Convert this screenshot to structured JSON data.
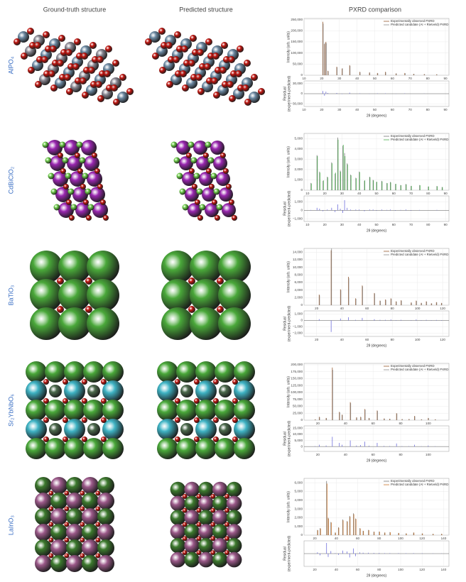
{
  "header": {
    "ground_truth": "Ground-truth structure",
    "predicted": "Predicted structure",
    "pxrd": "PXRD comparison"
  },
  "rows": [
    {
      "formula": "AlPO₄",
      "pxrd": {
        "type": "stem",
        "xlabel": "2θ (degrees)",
        "ylabel": "Intensity (arb. units)",
        "residual_ylabel": [
          "Residual",
          "(experiment-predicted)"
        ],
        "xlim": [
          10,
          92
        ],
        "xticks": [
          10,
          20,
          30,
          40,
          50,
          60,
          70,
          80,
          90
        ],
        "ylim": [
          0,
          255000
        ],
        "yticks": [
          0,
          {
            "value": 50000,
            "label": "50,000"
          },
          {
            "value": 100000,
            "label": "100,000"
          },
          {
            "value": 150000,
            "label": "150,000"
          },
          {
            "value": 200000,
            "label": "200,000"
          },
          {
            "value": 250000,
            "label": "250,000"
          }
        ],
        "x": [
          20.6,
          21.6,
          22.4,
          23.5,
          28.5,
          31.5,
          35.8,
          41.5,
          47,
          51.5,
          56,
          62,
          67,
          72,
          78,
          85
        ],
        "series": [
          {
            "name": "Experimentally observed PXRD",
            "color": "#9a5a2e",
            "values": [
              240000,
              140000,
              150000,
              20000,
              38000,
              30000,
              45000,
              15000,
              12000,
              10000,
              15000,
              8000,
              10000,
              6000,
              5000,
              4000
            ]
          },
          {
            "name": "Predicted candidate (AI + Rietveld) PXRD",
            "color": "#8c8c8c",
            "values": [
              232000,
              146000,
              144000,
              18000,
              36000,
              31000,
              42000,
              14000,
              12500,
              9000,
              14000,
              8500,
              9000,
              6000,
              4500,
              4000
            ]
          }
        ],
        "residual": {
          "color": "#5b5bd6",
          "ylim": [
            -38000,
            38000
          ],
          "yticks": [
            {
              "value": -30000,
              "label": "−30,000"
            },
            0,
            {
              "value": 30000,
              "label": "30,000"
            }
          ],
          "values": [
            8000,
            -6000,
            6000,
            2000,
            2000,
            -1000,
            3000,
            1000,
            -500,
            1000,
            1000,
            -500,
            1000,
            0,
            500,
            0
          ]
        }
      }
    },
    {
      "formula": "CdBiClO₂",
      "pxrd": {
        "type": "stem",
        "xlabel": "2θ (degrees)",
        "ylabel": "Intensity (arb. units)",
        "residual_ylabel": [
          "Residual",
          "(experiment-predicted)"
        ],
        "xlim": [
          8,
          92
        ],
        "xticks": [
          10,
          20,
          30,
          40,
          50,
          60,
          70,
          80,
          90
        ],
        "ylim": [
          0,
          5500
        ],
        "yticks": [
          0,
          {
            "value": 1000,
            "label": "1,000"
          },
          {
            "value": 2000,
            "label": "2,000"
          },
          {
            "value": 3000,
            "label": "3,000"
          },
          {
            "value": 4000,
            "label": "4,000"
          },
          {
            "value": 5000,
            "label": "5,000"
          }
        ],
        "x": [
          12,
          15.5,
          17,
          19,
          21.5,
          24,
          26,
          27.5,
          29,
          30.5,
          31.5,
          33,
          35,
          38,
          40,
          43,
          46,
          48,
          50,
          53,
          56,
          58,
          61,
          64,
          67,
          70,
          75,
          80,
          85,
          88
        ],
        "series": [
          {
            "name": "Experimentally observed PXRD",
            "color": "#777777",
            "values": [
              700,
              3400,
              1800,
              900,
              1300,
              2700,
              1600,
              5100,
              1900,
              4300,
              3600,
              2600,
              1500,
              1200,
              1800,
              900,
              1300,
              1000,
              800,
              900,
              700,
              800,
              600,
              500,
              600,
              400,
              500,
              350,
              400,
              300
            ]
          },
          {
            "name": "Predicted candidate (AI + Rietveld) PXRD",
            "color": "#4caf50",
            "values": [
              650,
              3300,
              1700,
              950,
              1250,
              2600,
              1700,
              4900,
              1800,
              4400,
              3300,
              2500,
              1450,
              1150,
              1750,
              950,
              1250,
              950,
              820,
              850,
              680,
              760,
              620,
              480,
              560,
              420,
              480,
              360,
              380,
              300
            ]
          },
          {
            "name": "",
            "color": "#000000",
            "values": []
          }
        ],
        "residual": {
          "color": "#5b5bd6",
          "ylim": [
            -1300,
            1700
          ],
          "yticks": [
            {
              "value": -1000,
              "label": "−1,000"
            },
            0,
            {
              "value": 1000,
              "label": "1,000"
            }
          ],
          "values": [
            50,
            300,
            200,
            -100,
            100,
            300,
            -200,
            700,
            200,
            -300,
            1200,
            300,
            100,
            100,
            100,
            -100,
            100,
            100,
            -50,
            100,
            50,
            100,
            -50,
            50,
            100,
            -50,
            50,
            0,
            50,
            0
          ]
        }
      }
    },
    {
      "formula": "BaTiO₃",
      "pxrd": {
        "type": "stem",
        "xlabel": "2θ (degrees)",
        "ylabel": "Intensity (arb. units)",
        "residual_ylabel": [
          "Residual",
          "(experiment-predicted)"
        ],
        "xlim": [
          10,
          125
        ],
        "xticks": [
          20,
          40,
          60,
          80,
          100,
          120
        ],
        "ylim": [
          0,
          15000
        ],
        "yticks": [
          0,
          {
            "value": 2000,
            "label": "2,000"
          },
          {
            "value": 4000,
            "label": "4,000"
          },
          {
            "value": 6000,
            "label": "6,000"
          },
          {
            "value": 8000,
            "label": "8,000"
          },
          {
            "value": 10000,
            "label": "10,000"
          },
          {
            "value": 12000,
            "label": "12,000"
          },
          {
            "value": 14000,
            "label": "14,000"
          }
        ],
        "x": [
          22,
          31.5,
          38.9,
          45.2,
          50.9,
          56.2,
          65.8,
          70.3,
          74.6,
          78.9,
          83,
          87,
          95,
          99,
          103,
          107,
          111,
          115,
          119
        ],
        "series": [
          {
            "name": "Experimentally observed PXRD",
            "color": "#9a5a2e",
            "values": [
              2800,
              14500,
              4200,
              7500,
              1800,
              5200,
              3200,
              1200,
              1500,
              1800,
              1000,
              1300,
              700,
              1200,
              600,
              1000,
              500,
              800,
              600
            ]
          },
          {
            "name": "Predicted candidate (AI + Rietveld) PXRD",
            "color": "#8c8c8c",
            "values": [
              2600,
              15000,
              4000,
              7200,
              1700,
              5000,
              3100,
              1150,
              1400,
              1700,
              950,
              1200,
              680,
              1100,
              580,
              950,
              480,
              760,
              560
            ]
          }
        ],
        "residual": {
          "color": "#5b5bd6",
          "ylim": [
            -2500,
            1500
          ],
          "yticks": [
            {
              "value": -2000,
              "label": "−2,000"
            },
            {
              "value": -1000,
              "label": "−1,000"
            },
            0,
            {
              "value": 1000,
              "label": "1,000"
            }
          ],
          "values": [
            200,
            -1800,
            300,
            500,
            100,
            400,
            200,
            100,
            100,
            150,
            50,
            100,
            50,
            150,
            50,
            100,
            50,
            80,
            60
          ]
        }
      }
    },
    {
      "formula": "Sr₂YbNbO₆",
      "pxrd": {
        "type": "stem",
        "xlabel": "2θ (degrees)",
        "ylabel": "Intensity (arb. units)",
        "residual_ylabel": [
          "Residual",
          "(experiment-predicted)"
        ],
        "xlim": [
          10,
          115
        ],
        "xticks": [
          20,
          40,
          60,
          80,
          100
        ],
        "ylim": [
          0,
          205000
        ],
        "yticks": [
          0,
          {
            "value": 25000,
            "label": "25,000"
          },
          {
            "value": 50000,
            "label": "50,000"
          },
          {
            "value": 75000,
            "label": "75,000"
          },
          {
            "value": 100000,
            "label": "100,000"
          },
          {
            "value": 125000,
            "label": "125,000"
          },
          {
            "value": 150000,
            "label": "150,000"
          },
          {
            "value": 175000,
            "label": "175,000"
          },
          {
            "value": 200000,
            "label": "200,000"
          }
        ],
        "x": [
          18,
          21,
          26,
          30.5,
          35.6,
          37.5,
          43.5,
          48,
          51,
          54,
          57,
          63,
          68,
          72,
          77,
          81,
          86,
          90,
          95,
          100,
          105
        ],
        "series": [
          {
            "name": "Experimentally observed PXRD",
            "color": "#9a5a2e",
            "values": [
              3000,
              12000,
              8000,
              190000,
              30000,
              20000,
              65000,
              10000,
              12000,
              40000,
              8000,
              35000,
              6000,
              5000,
              25000,
              4000,
              4000,
              15000,
              3000,
              8000,
              3000
            ]
          },
          {
            "name": "Predicted candidate (AI + Rietveld) PXRD",
            "color": "#8c8c8c",
            "values": [
              2800,
              11000,
              7500,
              182000,
              28000,
              19000,
              62000,
              9500,
              11000,
              38000,
              7500,
              33000,
              5800,
              4800,
              24000,
              3800,
              3900,
              14000,
              2900,
              7600,
              2900
            ]
          }
        ],
        "residual": {
          "color": "#5b5bd6",
          "ylim": [
            -4000,
            17000
          ],
          "yticks": [
            0,
            {
              "value": 5000,
              "label": "5,000"
            },
            {
              "value": 10000,
              "label": "10,000"
            },
            {
              "value": 15000,
              "label": "15,000"
            }
          ],
          "values": [
            300,
            1500,
            800,
            8000,
            3000,
            1500,
            5000,
            800,
            1200,
            4000,
            700,
            3000,
            500,
            400,
            2500,
            300,
            300,
            1500,
            200,
            800,
            200
          ]
        }
      }
    },
    {
      "formula": "LaInO₃",
      "pxrd": {
        "type": "stem",
        "xlabel": "2θ (degrees)",
        "ylabel": "Intensity (arb. units)",
        "residual_ylabel": [
          "Residual",
          "(experiment-predicted)"
        ],
        "xlim": [
          10,
          145
        ],
        "xticks": [
          20,
          40,
          60,
          80,
          100,
          120,
          140
        ],
        "ylim": [
          0,
          6500
        ],
        "yticks": [
          0,
          {
            "value": 1000,
            "label": "1,000"
          },
          {
            "value": 2000,
            "label": "2,000"
          },
          {
            "value": 3000,
            "label": "3,000"
          },
          {
            "value": 4000,
            "label": "4,000"
          },
          {
            "value": 5000,
            "label": "5,000"
          },
          {
            "value": 6000,
            "label": "6,000"
          }
        ],
        "x": [
          22.5,
          25,
          31,
          32.5,
          35,
          39,
          42,
          46,
          50,
          52.5,
          56,
          58,
          62,
          65,
          70,
          75,
          80,
          85,
          90,
          98,
          105,
          112,
          120,
          130,
          138
        ],
        "series": [
          {
            "name": "Experimentally observed PXRD",
            "color": "#777777",
            "values": [
              600,
              800,
              6200,
              2000,
              1500,
              300,
              900,
              1800,
              1600,
              2200,
              2500,
              1900,
              800,
              500,
              600,
              400,
              400,
              300,
              350,
              250,
              200,
              300,
              200,
              150,
              150
            ]
          },
          {
            "name": "Predicted candidate (AI + Rietveld) PXRD",
            "color": "#c8732a",
            "values": [
              560,
              760,
              5900,
              1900,
              1450,
              280,
              850,
              1700,
              1550,
              2100,
              2400,
              1850,
              760,
              480,
              570,
              380,
              390,
              290,
              330,
              240,
              190,
              290,
              190,
              140,
              145
            ]
          }
        ],
        "residual": {
          "color": "#5b5bd6",
          "ylim": [
            -3000,
            3000
          ],
          "values": [
            300,
            -400,
            2500,
            -800,
            600,
            100,
            -300,
            700,
            500,
            -900,
            1200,
            -600,
            300,
            200,
            200,
            150,
            150,
            100,
            100,
            100,
            80,
            100,
            80,
            50,
            50
          ]
        }
      }
    }
  ]
}
